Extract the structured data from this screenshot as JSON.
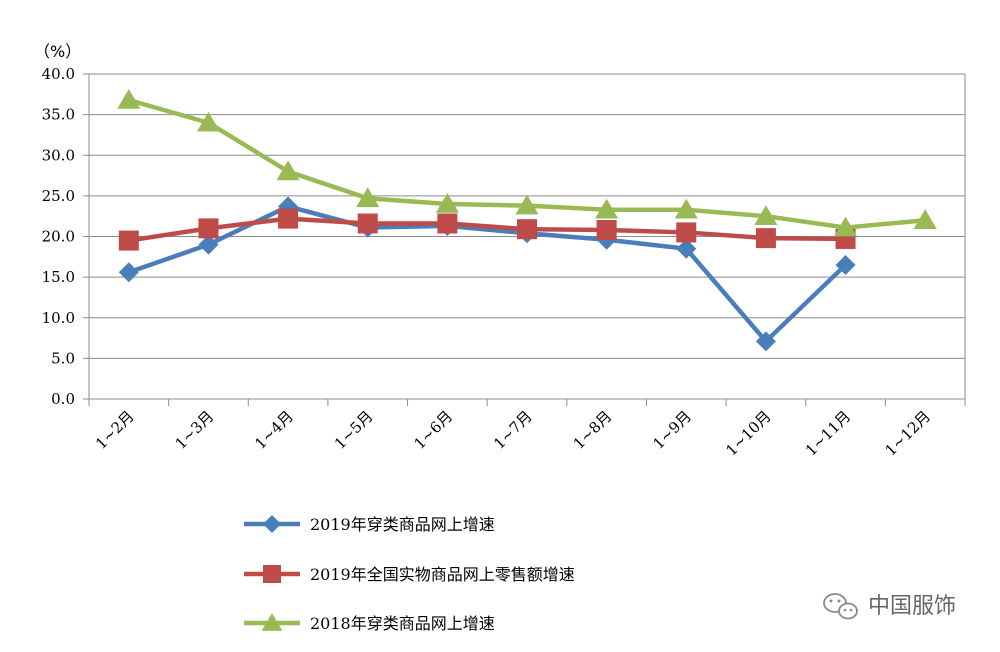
{
  "chart_data": {
    "type": "line",
    "unit_label": "（%）",
    "categories": [
      "1~2月",
      "1~3月",
      "1~4月",
      "1~5月",
      "1~6月",
      "1~7月",
      "1~8月",
      "1~9月",
      "1~10月",
      "1~11月",
      "1~12月"
    ],
    "ylim": [
      0,
      40
    ],
    "yticks": [
      "0.0",
      "5.0",
      "10.0",
      "15.0",
      "20.0",
      "25.0",
      "30.0",
      "35.0",
      "40.0"
    ],
    "grid": true,
    "legend_position": "bottom",
    "series": [
      {
        "name": "2019年穿类商品网上增速",
        "color": "#4a7ebb",
        "marker": "diamond",
        "values": [
          15.6,
          19.0,
          23.7,
          21.1,
          21.3,
          20.4,
          19.6,
          18.5,
          7.1,
          16.5,
          null
        ]
      },
      {
        "name": "2019年全国实物商品网上零售额增速",
        "color": "#be4b48",
        "marker": "square",
        "values": [
          19.5,
          21.0,
          22.2,
          21.6,
          21.6,
          20.9,
          20.8,
          20.5,
          19.8,
          19.7,
          null
        ]
      },
      {
        "name": "2018年穿类商品网上增速",
        "color": "#98b954",
        "marker": "triangle",
        "values": [
          36.8,
          34.0,
          28.0,
          24.7,
          24.0,
          23.8,
          23.3,
          23.3,
          22.5,
          21.1,
          22.0
        ]
      }
    ]
  },
  "watermark": {
    "text": "中国服饰",
    "icon": "wechat-icon"
  }
}
